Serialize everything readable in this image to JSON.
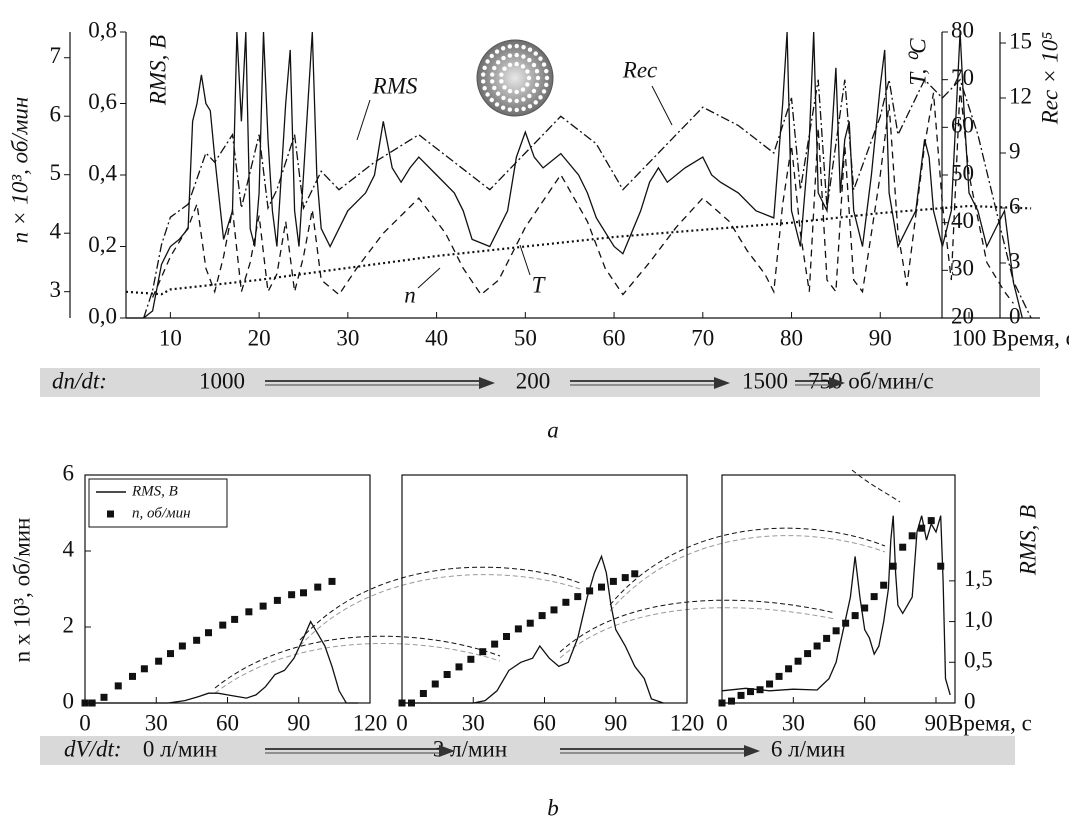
{
  "chart_data": [
    {
      "type": "line",
      "xlabel": "Время, с",
      "xlim": [
        5,
        108
      ],
      "xticks": [
        10,
        20,
        30,
        40,
        50,
        60,
        70,
        80,
        90,
        100
      ],
      "ylabel": "RMS, В",
      "ylim": [
        0,
        0.8
      ],
      "yticks": [
        {
          "value": 0,
          "label": "0,0"
        },
        {
          "value": 0.2,
          "label": "0,2"
        },
        {
          "value": 0.4,
          "label": "0,4"
        },
        {
          "value": 0.6,
          "label": "0,6"
        },
        {
          "value": 0.8,
          "label": "0,8"
        }
      ],
      "y2label": "n × 10³, об/мин",
      "y2lim": [
        2.55,
        7.44
      ],
      "y2ticks": [
        3,
        4,
        5,
        6,
        7
      ],
      "y3label": "T, ⁰C",
      "y3lim": [
        20,
        80
      ],
      "y3ticks": [
        20,
        30,
        40,
        50,
        60,
        70,
        80
      ],
      "y4label": "Rec × 10⁵",
      "y4lim": [
        0,
        15.6
      ],
      "y4ticks": [
        0,
        3,
        6,
        9,
        12,
        15
      ],
      "annotations": [
        "RMS",
        "Rec",
        "n",
        "T"
      ],
      "series": [
        {
          "name": "RMS",
          "axis": "y",
          "style": "solid",
          "color": "#111111",
          "x": [
            5,
            7,
            8,
            9,
            10,
            11,
            12,
            12.5,
            13,
            13.5,
            14,
            14.5,
            15,
            16,
            17,
            17.5,
            18,
            18.5,
            19,
            19.5,
            20,
            20.5,
            21,
            21.5,
            22,
            23,
            23.5,
            24,
            24.5,
            25,
            26,
            26.5,
            27,
            28,
            30,
            32,
            33,
            34,
            35,
            36,
            37,
            38,
            40,
            42,
            43,
            44,
            46,
            48,
            49,
            50,
            51,
            52,
            54,
            56,
            57,
            58,
            60,
            61,
            63,
            64,
            65,
            66,
            68,
            70,
            71,
            72,
            74,
            76,
            78,
            79,
            79.5,
            80,
            81,
            82,
            82.5,
            83,
            84,
            85,
            85.5,
            86,
            86.5,
            87,
            88,
            89,
            90,
            90.5,
            91,
            92,
            93,
            94,
            95,
            95.5,
            96,
            97,
            98,
            99,
            99.5,
            100,
            101,
            102,
            103,
            104,
            105,
            106
          ],
          "values": [
            0,
            0,
            0.02,
            0.15,
            0.2,
            0.22,
            0.25,
            0.55,
            0.6,
            0.68,
            0.6,
            0.58,
            0.45,
            0.22,
            0.3,
            0.8,
            0.55,
            0.8,
            0.25,
            0.2,
            0.35,
            0.8,
            0.5,
            0.3,
            0.2,
            0.6,
            0.75,
            0.3,
            0.2,
            0.4,
            0.8,
            0.4,
            0.25,
            0.2,
            0.3,
            0.35,
            0.4,
            0.55,
            0.42,
            0.38,
            0.42,
            0.45,
            0.4,
            0.35,
            0.3,
            0.22,
            0.2,
            0.3,
            0.45,
            0.52,
            0.45,
            0.42,
            0.46,
            0.4,
            0.35,
            0.28,
            0.2,
            0.18,
            0.3,
            0.38,
            0.42,
            0.38,
            0.42,
            0.45,
            0.4,
            0.38,
            0.35,
            0.3,
            0.28,
            0.6,
            0.8,
            0.3,
            0.2,
            0.5,
            0.8,
            0.35,
            0.3,
            0.7,
            0.35,
            0.5,
            0.55,
            0.3,
            0.2,
            0.4,
            0.65,
            0.75,
            0.35,
            0.2,
            0.25,
            0.3,
            0.5,
            0.45,
            0.3,
            0.2,
            0.3,
            0.8,
            0.55,
            0.35,
            0.3,
            0.2,
            0.25,
            0.3,
            0.1,
            0
          ]
        },
        {
          "name": "n",
          "axis": "y2",
          "style": "dashed",
          "color": "#111111",
          "x": [
            8,
            10,
            12,
            13,
            14,
            15,
            16,
            17,
            18,
            19,
            20,
            21,
            22,
            23,
            24,
            25,
            26,
            27,
            29,
            31,
            34,
            38,
            41,
            43,
            45,
            47,
            50,
            54,
            57,
            59,
            61,
            64,
            67,
            70,
            73,
            75,
            77,
            78,
            79,
            80,
            81,
            82,
            83,
            84,
            85,
            86,
            87,
            88,
            90,
            91,
            92,
            93,
            95,
            96,
            97,
            98,
            99,
            100,
            102,
            104,
            105
          ],
          "values": [
            2.9,
            3.6,
            4.1,
            4.5,
            3.4,
            3.0,
            3.6,
            4.4,
            3.0,
            3.5,
            4.3,
            3.0,
            3.3,
            4.2,
            3.0,
            3.6,
            4.4,
            3.2,
            2.95,
            3.4,
            4.0,
            4.6,
            4.0,
            3.4,
            2.95,
            3.2,
            4.1,
            5.0,
            4.2,
            3.4,
            2.95,
            3.5,
            4.1,
            4.6,
            4.2,
            3.7,
            3.3,
            3.0,
            4.5,
            5.5,
            4.0,
            3.0,
            5.8,
            3.2,
            3.0,
            5.5,
            3.2,
            3.0,
            5.0,
            6.2,
            4.0,
            3.1,
            5.5,
            6.4,
            4.5,
            3.2,
            6.5,
            5.0,
            3.5,
            3.0,
            2.8
          ]
        },
        {
          "name": "T",
          "axis": "y3",
          "style": "dotted",
          "color": "#111111",
          "x": [
            5,
            9,
            10,
            20,
            30,
            40,
            50,
            60,
            70,
            80,
            90,
            100,
            107
          ],
          "values": [
            25.5,
            25,
            26,
            28,
            30.5,
            33,
            35,
            37,
            38.5,
            40,
            42,
            43.5,
            43
          ]
        },
        {
          "name": "Rec",
          "axis": "y4",
          "style": "dashdot",
          "color": "#111111",
          "x": [
            7,
            8,
            9,
            10,
            12,
            14,
            15,
            17,
            18,
            20,
            21,
            22,
            24,
            25,
            27,
            29,
            33,
            38,
            42,
            46,
            50,
            54,
            58,
            61,
            65,
            70,
            74,
            78,
            80,
            81,
            83,
            84,
            86,
            87,
            90,
            91,
            92,
            95,
            97,
            99,
            101,
            103,
            105,
            107
          ],
          "values": [
            0,
            1.5,
            4,
            5.5,
            6.2,
            9,
            8.5,
            10,
            6,
            10,
            6,
            7,
            10,
            6,
            8,
            7,
            8.5,
            10,
            8.5,
            7,
            9,
            11,
            9.5,
            7,
            9,
            11.5,
            10.5,
            9,
            12,
            7,
            13,
            6,
            13,
            7,
            11,
            13,
            10,
            13,
            12,
            13,
            10,
            6,
            2,
            0
          ]
        }
      ],
      "rate_label": "dn/dt:",
      "rates": [
        "1000",
        "200",
        "1500",
        "750 об/мин/с"
      ],
      "caption": "a"
    },
    {
      "type": "combo",
      "xlabel": "Время, с",
      "ylabel": "n x 10³, об/мин",
      "ylim": [
        0,
        6
      ],
      "yticks": [
        0,
        2,
        4,
        6
      ],
      "y2label": "RMS, В",
      "y2lim": [
        0,
        2.8
      ],
      "y2ticks": [
        0,
        {
          "value": 0.5,
          "label": "0,5"
        },
        {
          "value": 1.0,
          "label": "1,0"
        },
        {
          "value": 1.5,
          "label": "1,5"
        }
      ],
      "series": [
        {
          "name": "RMS, В",
          "style": "line",
          "axis": "y2",
          "color": "#111111"
        },
        {
          "name": "n, об/мин",
          "style": "square",
          "axis": "y",
          "color": "#111111"
        }
      ],
      "subplots": [
        {
          "xlim": [
            0,
            120
          ],
          "xticks": [
            0,
            30,
            60,
            90,
            120
          ],
          "series": [
            {
              "x": [
                0,
                35,
                42,
                48,
                52,
                56,
                60,
                64,
                68,
                72,
                76,
                80,
                84,
                88,
                92,
                95,
                98,
                101,
                104,
                107,
                110,
                115
              ],
              "values": [
                0,
                0,
                0.03,
                0.08,
                0.12,
                0.12,
                0.1,
                0.08,
                0.06,
                0.1,
                0.2,
                0.35,
                0.4,
                0.55,
                0.8,
                1.0,
                0.85,
                0.7,
                0.45,
                0.15,
                0,
                0
              ]
            },
            {
              "x": [
                0,
                3,
                8,
                14,
                20,
                25,
                31,
                36,
                41,
                47,
                52,
                58,
                63,
                69,
                75,
                81,
                87,
                92,
                98,
                104
              ],
              "values": [
                0,
                0,
                0.15,
                0.45,
                0.7,
                0.9,
                1.1,
                1.3,
                1.5,
                1.65,
                1.85,
                2.05,
                2.2,
                2.4,
                2.55,
                2.7,
                2.85,
                2.9,
                3.05,
                3.2
              ]
            }
          ]
        },
        {
          "xlim": [
            0,
            120
          ],
          "xticks": [
            0,
            30,
            60,
            90,
            120
          ],
          "series": [
            {
              "x": [
                0,
                30,
                35,
                40,
                45,
                50,
                55,
                58,
                62,
                66,
                70,
                74,
                78,
                81,
                84,
                86,
                88,
                90,
                94,
                98,
                102,
                105,
                110
              ],
              "values": [
                0,
                0,
                0.03,
                0.15,
                0.4,
                0.5,
                0.55,
                0.7,
                0.55,
                0.45,
                0.5,
                0.8,
                1.3,
                1.6,
                1.8,
                1.6,
                1.2,
                0.9,
                0.7,
                0.45,
                0.3,
                0.05,
                0
              ]
            },
            {
              "x": [
                0,
                4,
                9,
                14,
                19,
                24,
                29,
                34,
                39,
                44,
                49,
                54,
                59,
                64,
                69,
                74,
                79,
                84,
                89,
                94,
                98
              ],
              "values": [
                0,
                0,
                0.25,
                0.5,
                0.75,
                0.95,
                1.15,
                1.35,
                1.55,
                1.75,
                1.95,
                2.1,
                2.3,
                2.45,
                2.65,
                2.8,
                2.95,
                3.05,
                3.2,
                3.3,
                3.4
              ]
            }
          ]
        },
        {
          "xlim": [
            0,
            98
          ],
          "xticks": [
            0,
            30,
            60,
            90
          ],
          "series": [
            {
              "x": [
                0,
                10,
                20,
                30,
                40,
                45,
                48,
                51,
                54,
                56,
                58,
                60,
                62,
                64,
                66,
                68,
                70,
                71,
                72,
                73,
                74,
                76,
                78,
                80,
                82,
                84,
                86,
                88,
                90,
                92,
                93,
                94,
                96
              ],
              "values": [
                0.15,
                0.18,
                0.15,
                0.17,
                0.16,
                0.3,
                0.5,
                0.9,
                1.3,
                1.8,
                1.3,
                0.9,
                0.8,
                0.6,
                0.7,
                1.0,
                1.4,
                2.0,
                2.3,
                1.6,
                1.2,
                1.1,
                1.2,
                1.3,
                2.1,
                2.3,
                2.0,
                2.2,
                2.1,
                2.3,
                1.5,
                0.3,
                0.1
              ]
            },
            {
              "x": [
                0,
                4,
                8,
                12,
                16,
                20,
                24,
                28,
                32,
                36,
                40,
                44,
                48,
                52,
                56,
                60,
                64,
                68,
                72,
                76,
                80,
                84,
                88,
                92
              ],
              "values": [
                0,
                0.05,
                0.2,
                0.3,
                0.35,
                0.5,
                0.7,
                0.9,
                1.1,
                1.3,
                1.5,
                1.7,
                1.9,
                2.1,
                2.3,
                2.5,
                2.8,
                3.1,
                3.6,
                4.1,
                4.4,
                4.6,
                4.8,
                3.6
              ]
            }
          ]
        }
      ],
      "rate_label": "dV/dt:",
      "rates": [
        "0 л/мин",
        "3 л/мин",
        "6 л/мин"
      ],
      "caption": "b"
    }
  ]
}
